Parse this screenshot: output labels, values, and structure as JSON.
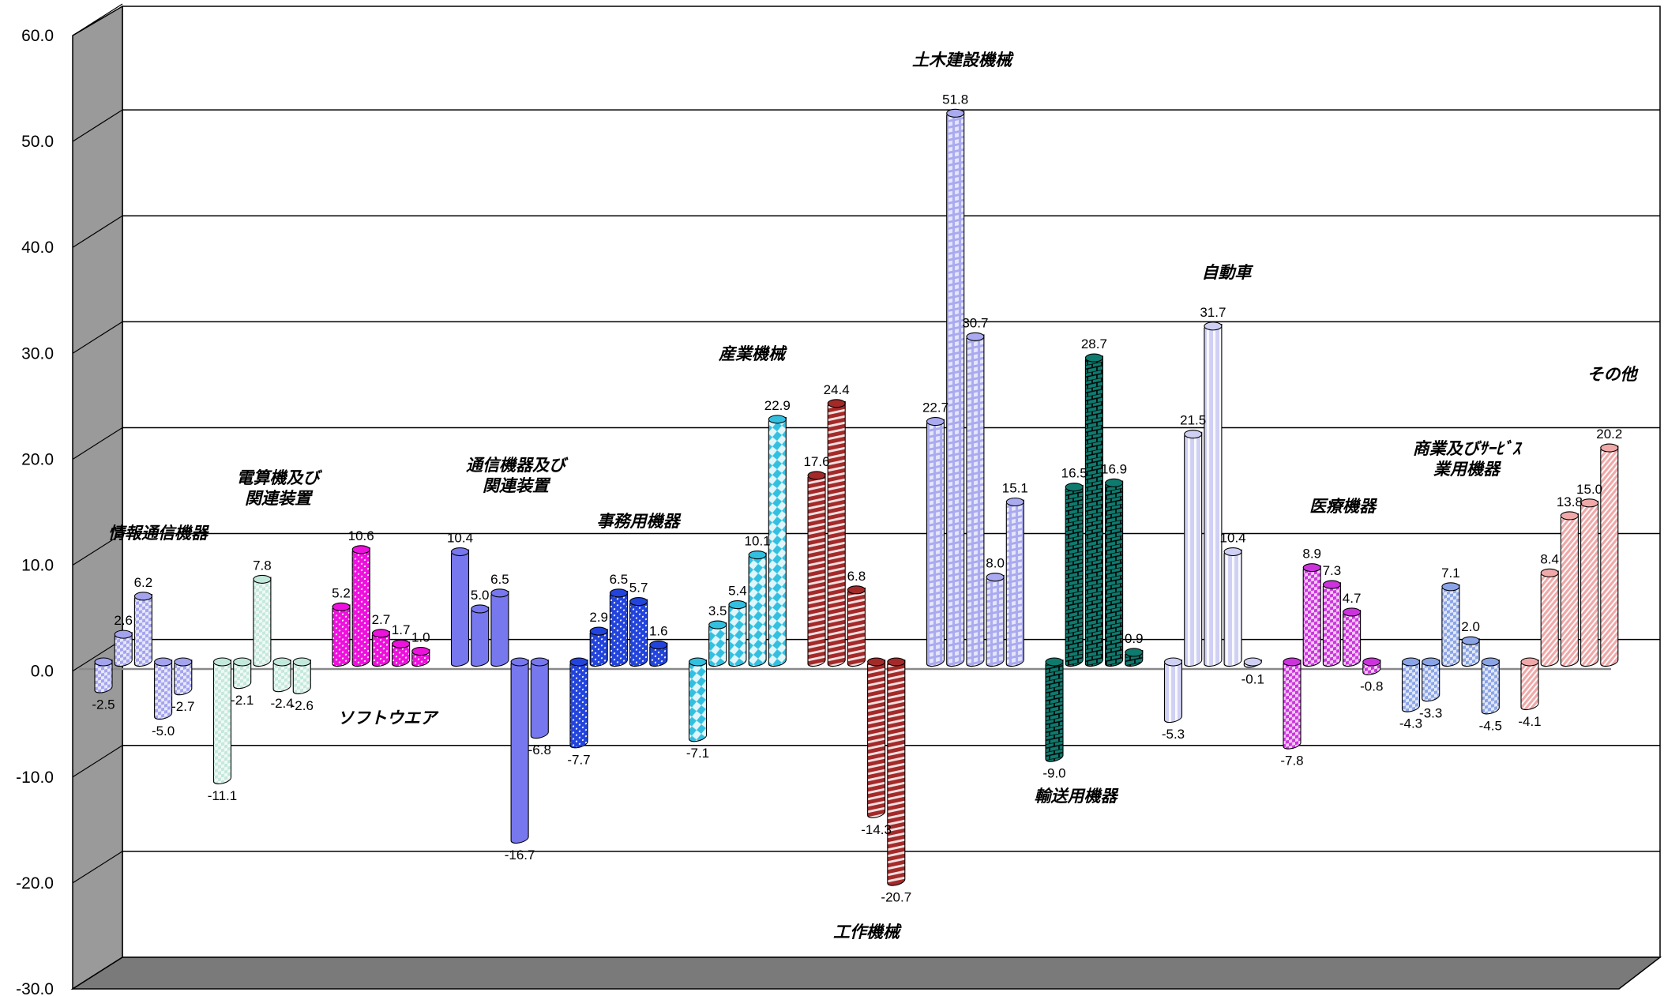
{
  "chart_data": {
    "type": "bar",
    "ylim": [
      -30,
      60
    ],
    "yticks": [
      "60.0",
      "50.0",
      "40.0",
      "30.0",
      "20.0",
      "10.0",
      "0.0",
      "-10.0",
      "-20.0",
      "-30.0"
    ],
    "grid": true,
    "groups": [
      {
        "name": "情報通信機器",
        "color": "#a3a3ee",
        "pattern": "check",
        "values": [
          -2.5,
          2.6,
          6.2,
          -5.0,
          -2.7
        ],
        "labels": [
          "-2.5",
          "2.6",
          "6.2",
          "-5.0",
          "-2.7"
        ]
      },
      {
        "name": "電算機及び\n関連装置",
        "color": "#c3e8dc",
        "pattern": "check",
        "values": [
          -11.1,
          -2.1,
          7.8,
          -2.4,
          -2.6
        ],
        "labels": [
          "-11.1",
          "-2.1",
          "7.8",
          "-2.4",
          "-2.6"
        ]
      },
      {
        "name": "ソフトウエア",
        "color": "#ee11dd",
        "pattern": "dots",
        "values": [
          5.2,
          10.6,
          2.7,
          1.7,
          1.0
        ],
        "labels": [
          "5.2",
          "10.6",
          "2.7",
          "1.7",
          "1.0"
        ]
      },
      {
        "name": "通信機器及び\n関連装置",
        "color": "#7777ee",
        "pattern": "solid",
        "values": [
          10.4,
          5.0,
          6.5,
          -16.7,
          -6.8
        ],
        "labels": [
          "10.4",
          "5.0",
          "6.5",
          "-16.7",
          "-6.8"
        ]
      },
      {
        "name": "事務用機器",
        "color": "#2244dd",
        "pattern": "dots",
        "values": [
          -7.7,
          2.9,
          6.5,
          5.7,
          1.6
        ],
        "labels": [
          "-7.7",
          "2.9",
          "6.5",
          "5.7",
          "1.6"
        ]
      },
      {
        "name": "産業機械",
        "color": "#33c0e0",
        "pattern": "diamond",
        "values": [
          -7.1,
          3.5,
          5.4,
          10.1,
          22.9
        ],
        "labels": [
          "-7.1",
          "3.5",
          "5.4",
          "10.1",
          "22.9"
        ]
      },
      {
        "name": "工作機械",
        "color": "#a42a2a",
        "pattern": "hstripe",
        "values": [
          17.6,
          24.4,
          6.8,
          -14.3,
          -20.7
        ],
        "labels": [
          "17.6",
          "24.4",
          "6.8",
          "-14.3",
          "-20.7"
        ]
      },
      {
        "name": "土木建設機械",
        "color": "#aaaaf0",
        "pattern": "grid",
        "values": [
          22.7,
          51.8,
          30.7,
          8.0,
          15.1
        ],
        "labels": [
          "22.7",
          "51.8",
          "30.7",
          "8.0",
          "15.1"
        ]
      },
      {
        "name": "輸送用機器",
        "color": "#0f7a6e",
        "pattern": "brick",
        "values": [
          -9.0,
          16.5,
          28.7,
          16.9,
          0.9
        ],
        "labels": [
          "-9.0",
          "16.5",
          "28.7",
          "16.9",
          "0.9"
        ]
      },
      {
        "name": "自動車",
        "color": "#d0d0f4",
        "pattern": "vstripe",
        "values": [
          -5.3,
          21.5,
          31.7,
          10.4,
          -0.1
        ],
        "labels": [
          "-5.3",
          "21.5",
          "31.7",
          "10.4",
          "-0.1"
        ]
      },
      {
        "name": "医療機器",
        "color": "#cc33dd",
        "pattern": "check",
        "values": [
          -7.8,
          8.9,
          7.3,
          4.7,
          -0.8
        ],
        "labels": [
          "-7.8",
          "8.9",
          "7.3",
          "4.7",
          "-0.8"
        ]
      },
      {
        "name": "商業及びｻｰﾋﾞｽ\n業用機器",
        "color": "#8aa4e6",
        "pattern": "check",
        "values": [
          -4.3,
          -3.3,
          7.1,
          2.0,
          -4.5
        ],
        "labels": [
          "-4.3",
          "-3.3",
          "7.1",
          "2.0",
          "-4.5"
        ]
      },
      {
        "name": "その他",
        "color": "#f0a8a8",
        "pattern": "dstripe",
        "values": [
          -4.1,
          8.4,
          13.8,
          15.0,
          20.2
        ],
        "labels": [
          "-4.1",
          "8.4",
          "13.8",
          "15.0",
          "20.2"
        ]
      }
    ]
  }
}
